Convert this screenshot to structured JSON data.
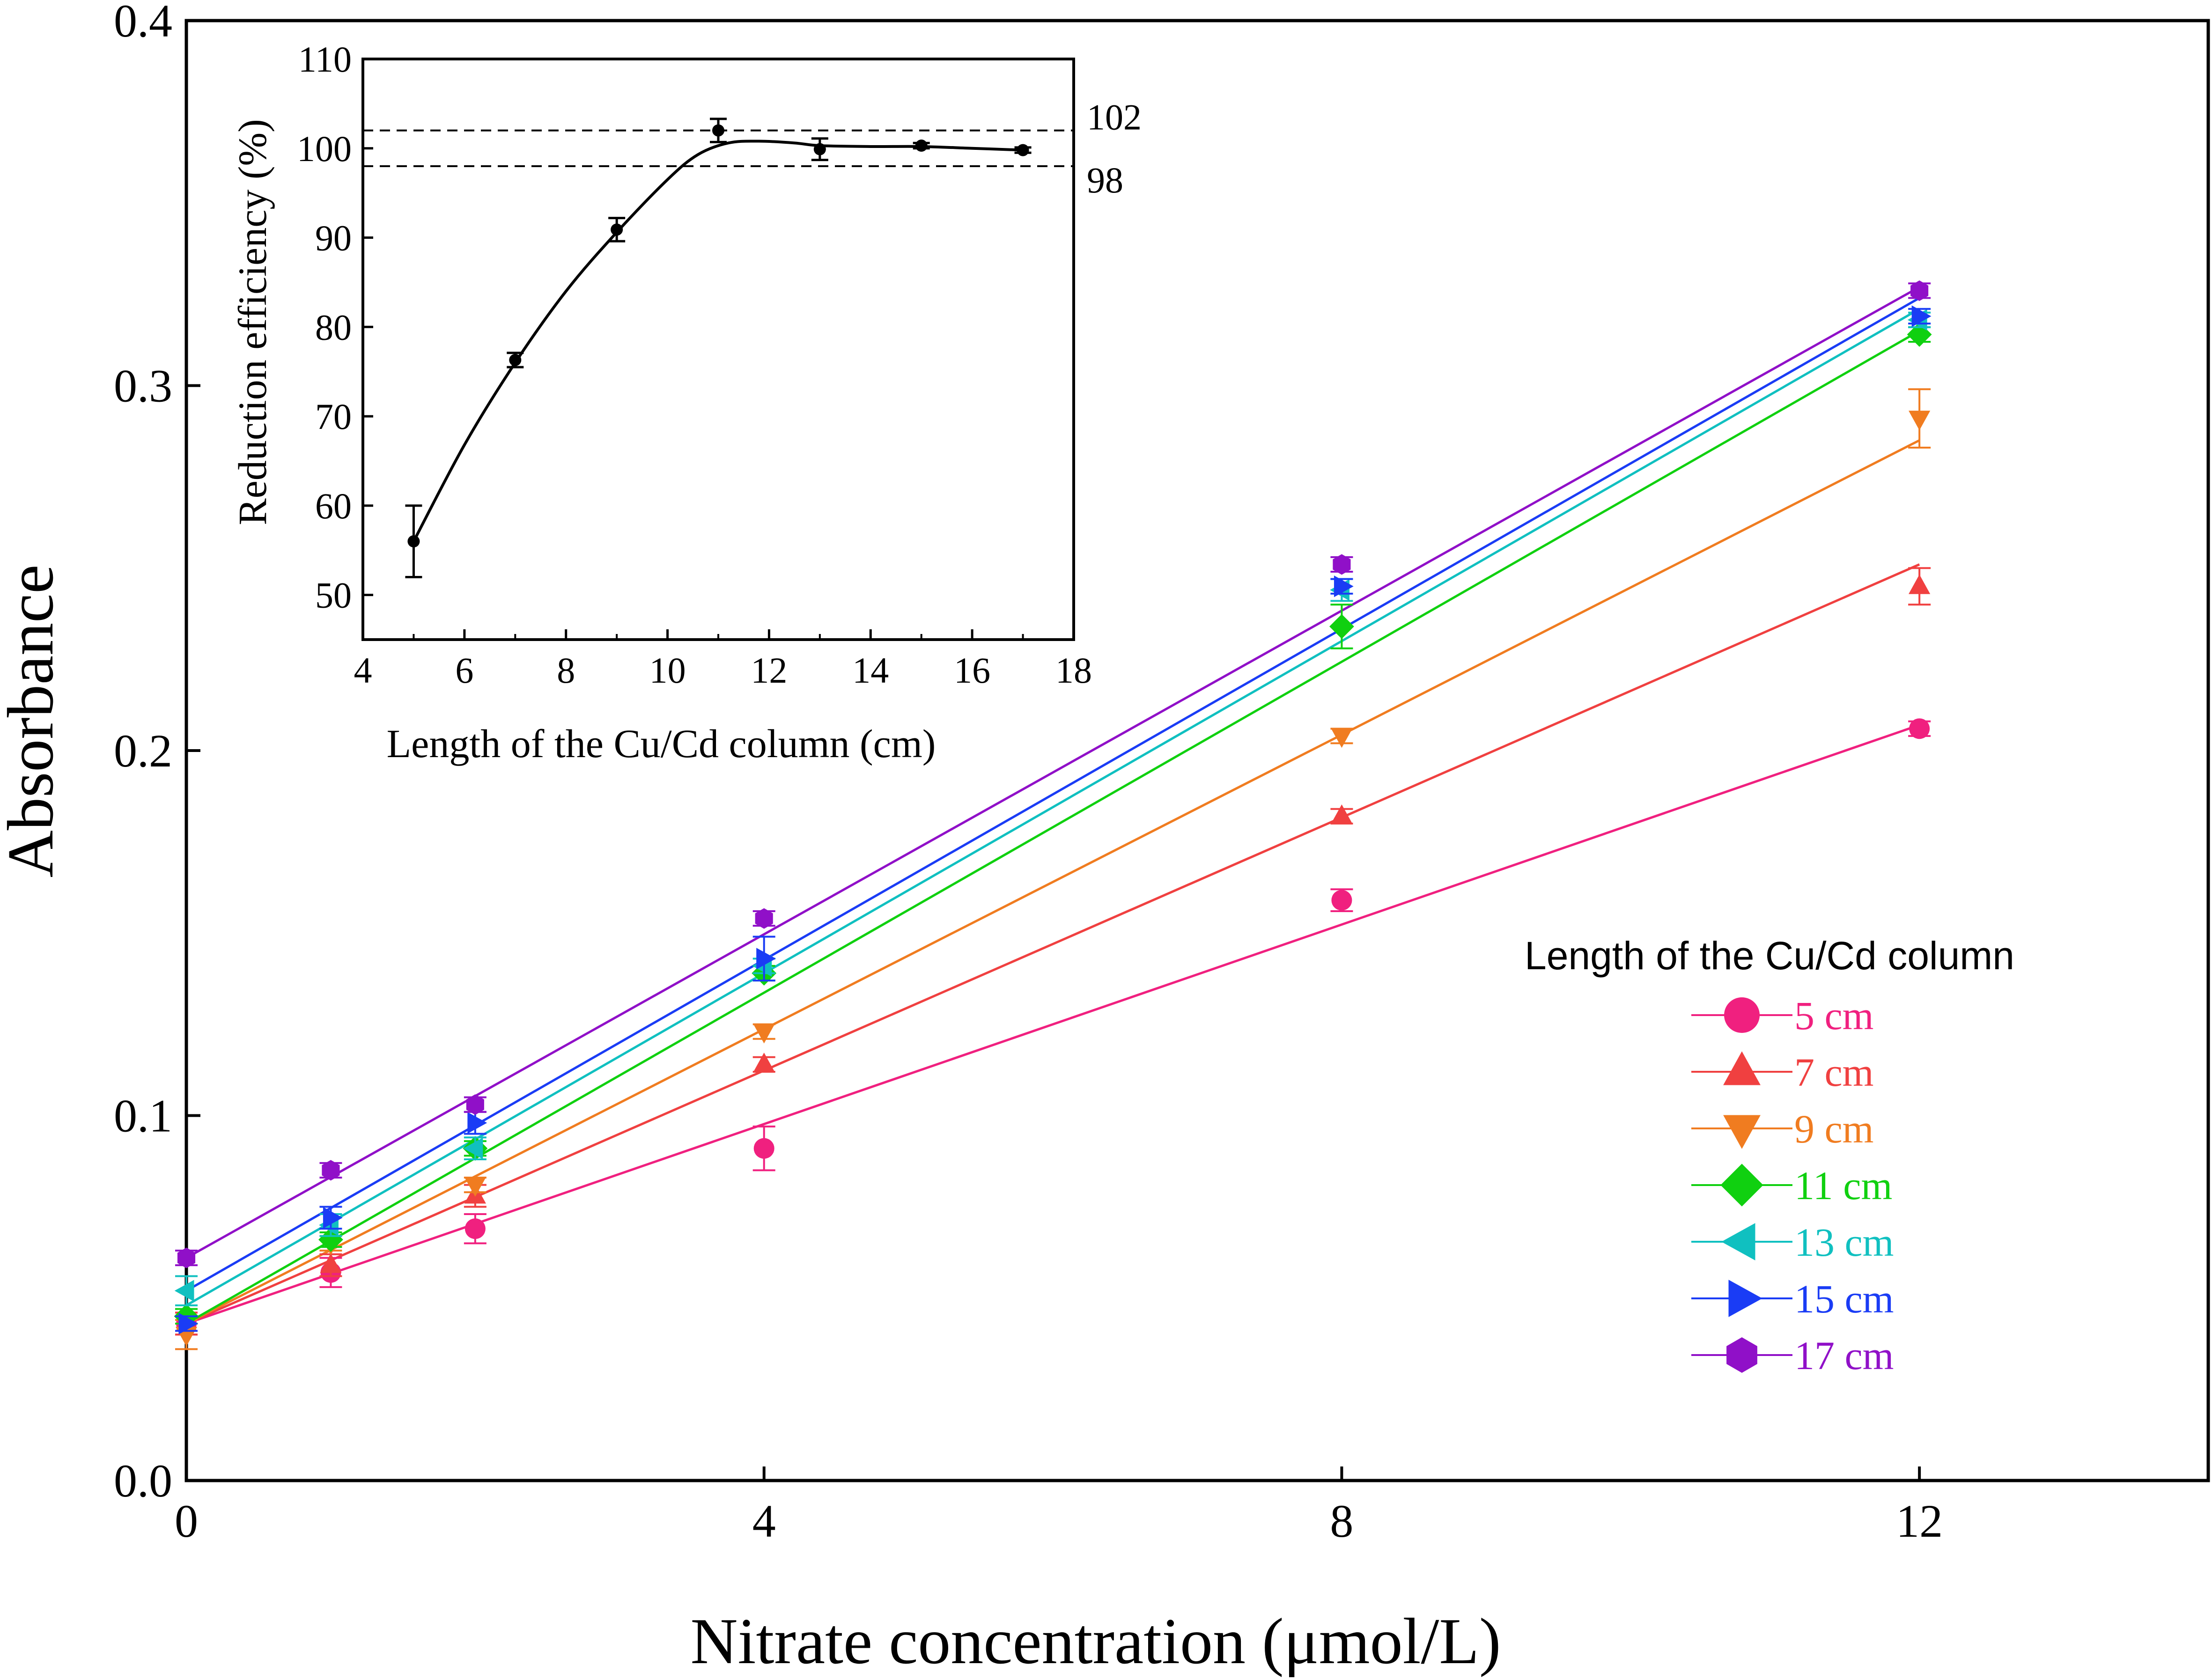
{
  "chart_data": [
    {
      "type": "scatter",
      "title": "",
      "xlabel": "Nitrate concentration (μmol/L)",
      "ylabel": "Absorbance",
      "xlim": [
        0,
        14
      ],
      "ylim": [
        0,
        0.4
      ],
      "xticks": [
        0,
        4,
        8,
        12
      ],
      "xtick_labels": [
        "0",
        "4",
        "8",
        "12"
      ],
      "yticks": [
        0,
        0.1,
        0.2,
        0.3,
        0.4
      ],
      "ytick_labels": [
        "0.0",
        "0.1",
        "0.2",
        "0.3",
        "0.4"
      ],
      "grid": false,
      "legend_title": "Length of the  Cu/Cd column",
      "legend_position": "right",
      "x": [
        0,
        1,
        2,
        4,
        8,
        12
      ],
      "series": [
        {
          "name": "5 cm",
          "marker": "circle",
          "color": "#f0207f",
          "values": [
            0.043,
            0.057,
            0.069,
            0.091,
            0.159,
            0.206
          ],
          "errors": [
            0.003,
            0.004,
            0.004,
            0.006,
            0.003,
            0.002
          ],
          "fit": [
            0.043,
            0.207
          ]
        },
        {
          "name": "7 cm",
          "marker": "triangle-up",
          "color": "#f04040",
          "values": [
            0.043,
            0.059,
            0.078,
            0.114,
            0.182,
            0.245
          ],
          "errors": [
            0.003,
            0.003,
            0.003,
            0.002,
            0.002,
            0.005
          ],
          "fit": [
            0.043,
            0.251
          ]
        },
        {
          "name": "9 cm",
          "marker": "triangle-down",
          "color": "#f07c20",
          "values": [
            0.04,
            0.065,
            0.081,
            0.123,
            0.204,
            0.291
          ],
          "errors": [
            0.004,
            0.002,
            0.002,
            0.002,
            0.002,
            0.008
          ],
          "fit": [
            0.043,
            0.285
          ]
        },
        {
          "name": "11 cm",
          "marker": "diamond",
          "color": "#10d010",
          "values": [
            0.045,
            0.066,
            0.091,
            0.139,
            0.234,
            0.314
          ],
          "errors": [
            0.002,
            0.002,
            0.002,
            0.002,
            0.006,
            0.002
          ],
          "fit": [
            0.043,
            0.315
          ]
        },
        {
          "name": "13 cm",
          "marker": "triangle-left",
          "color": "#10c0c0",
          "values": [
            0.052,
            0.07,
            0.091,
            0.141,
            0.244,
            0.318
          ],
          "errors": [
            0.004,
            0.003,
            0.003,
            0.002,
            0.003,
            0.002
          ],
          "fit": [
            0.048,
            0.321
          ]
        },
        {
          "name": "15 cm",
          "marker": "triangle-right",
          "color": "#1a3cf5",
          "values": [
            0.043,
            0.072,
            0.098,
            0.143,
            0.245,
            0.319
          ],
          "errors": [
            0.002,
            0.003,
            0.003,
            0.006,
            0.002,
            0.002
          ],
          "fit": [
            0.052,
            0.324
          ]
        },
        {
          "name": "17 cm",
          "marker": "hexagon",
          "color": "#9010c8",
          "values": [
            0.061,
            0.085,
            0.103,
            0.154,
            0.251,
            0.326
          ],
          "errors": [
            0.002,
            0.002,
            0.002,
            0.002,
            0.002,
            0.002
          ],
          "fit": [
            0.061,
            0.327
          ]
        }
      ]
    },
    {
      "type": "line",
      "title": "",
      "xlabel": "Length of the Cu/Cd column (cm)",
      "ylabel": "Reduction efficiency (%)",
      "xlim": [
        4,
        18
      ],
      "ylim": [
        45,
        110
      ],
      "xticks": [
        4,
        6,
        8,
        10,
        12,
        14,
        16,
        18
      ],
      "xtick_labels": [
        "4",
        "6",
        "8",
        "10",
        "12",
        "14",
        "16",
        "18"
      ],
      "yticks": [
        50,
        60,
        70,
        80,
        90,
        100,
        110
      ],
      "ytick_labels": [
        "50",
        "60",
        "70",
        "80",
        "90",
        "100",
        "110"
      ],
      "grid": false,
      "x": [
        5,
        7,
        9,
        11,
        13,
        15,
        17
      ],
      "values": [
        56.0,
        76.3,
        90.9,
        102.0,
        99.9,
        100.3,
        99.8
      ],
      "errors": [
        4.0,
        0.8,
        1.3,
        1.3,
        1.2,
        0.3,
        0.3
      ],
      "reference_lines": [
        {
          "value": 102,
          "label": "102",
          "style": "dashed"
        },
        {
          "value": 98,
          "label": "98",
          "style": "dashed"
        }
      ]
    }
  ]
}
